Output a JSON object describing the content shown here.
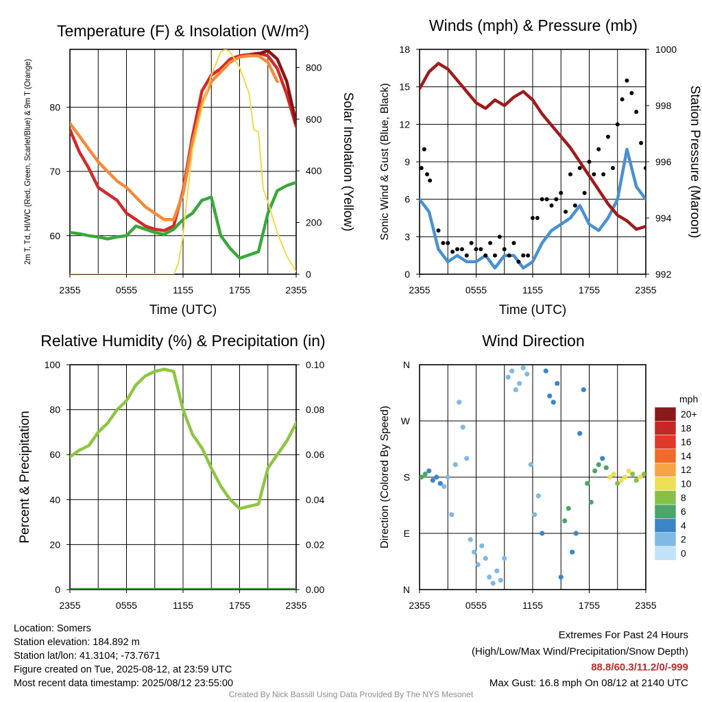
{
  "footer": {
    "location": "Location: Somers",
    "elevation": "Station elevation: 184.892 m",
    "latlon": "Station lat/lon: 41.3104; -73.7671",
    "created": "Figure created on Tue, 2025-08-12, at 23:59 UTC",
    "recent": "Most recent data timestamp: 2025/08/12 23:55:00",
    "extremes_title": "Extremes For Past 24 Hours",
    "extremes_sub": "(High/Low/Max Wind/Precipitation/Snow Depth)",
    "extremes_values": "88.8/60.3/11.2/0/-999",
    "max_gust": "Max Gust: 16.8 mph On 08/12 at 2140 UTC",
    "credit": "Created By Nick Bassill Using Data Provided By The NYS Mesonet"
  },
  "colors": {
    "temp_2m": "#d42a2a",
    "dewpoint": "#3aa83a",
    "heat_index": "#8b1515",
    "temp_9m": "#f38b3a",
    "insolation": "#f5d84a",
    "wind": "#4a90cf",
    "gust": "#000000",
    "pressure": "#9e1b1b",
    "rh": "#8dc63f",
    "precip": "#2e8b2e",
    "extremes": "#c0282d"
  },
  "chart_data": [
    {
      "type": "line",
      "title": "Temperature (F) & Insolation (W/m²)",
      "xlabel": "Time (UTC)",
      "ylabel": "2m T, Td, HI/WC (Red, Green, Scarlet/Blue) & 9m T (Orange)",
      "y2label": "Solar Insolation (Yellow)",
      "xticks": [
        "2355",
        "0555",
        "1155",
        "1755",
        "2355"
      ],
      "xlim": [
        0,
        24
      ],
      "ylim": [
        54,
        89
      ],
      "yticks": [
        60,
        70,
        80
      ],
      "y2lim": [
        0,
        870
      ],
      "y2ticks": [
        0,
        200,
        400,
        600,
        800
      ],
      "grid": true,
      "series": [
        {
          "name": "2m T",
          "axis": "left",
          "color_key": "temp_2m",
          "x": [
            0,
            1,
            2,
            3,
            4,
            5,
            6,
            7,
            8,
            9,
            10,
            11,
            12,
            13,
            14,
            15,
            16,
            17,
            18,
            19,
            20,
            21,
            22,
            23,
            24
          ],
          "y": [
            76.5,
            73.0,
            70.5,
            67.5,
            66.5,
            65.5,
            63.5,
            62.5,
            61.5,
            61.0,
            60.8,
            61.5,
            67.0,
            75.5,
            82.5,
            85.0,
            86.0,
            87.5,
            88.0,
            88.2,
            88.4,
            88.0,
            86.0,
            82.0,
            77.0
          ]
        },
        {
          "name": "HI/WC",
          "axis": "left",
          "color_key": "heat_index",
          "x": [
            19,
            20,
            21,
            22,
            23,
            24
          ],
          "y": [
            88.0,
            88.3,
            88.8,
            87.5,
            84.0,
            77.5
          ]
        },
        {
          "name": "9m T",
          "axis": "left",
          "color_key": "temp_9m",
          "x": [
            0,
            1,
            2,
            3,
            4,
            5,
            6,
            7,
            8,
            9,
            10,
            11,
            12,
            13,
            14,
            15,
            16,
            17,
            18,
            19,
            20,
            21,
            22
          ],
          "y": [
            77.5,
            75.5,
            73.5,
            71.5,
            70.0,
            68.5,
            67.5,
            66.0,
            64.5,
            63.5,
            62.5,
            62.5,
            66.5,
            74.5,
            80.5,
            84.0,
            85.5,
            87.0,
            87.8,
            88.0,
            88.0,
            87.0,
            84.0
          ]
        },
        {
          "name": "Td",
          "axis": "left",
          "color_key": "dewpoint",
          "x": [
            0,
            1,
            2,
            3,
            4,
            5,
            6,
            7,
            8,
            9,
            10,
            11,
            12,
            13,
            14,
            15,
            16,
            17,
            18,
            19,
            20,
            21,
            22,
            23,
            24
          ],
          "y": [
            60.5,
            60.3,
            60.0,
            59.8,
            59.5,
            59.8,
            60.0,
            61.5,
            61.0,
            60.5,
            60.2,
            61.0,
            62.5,
            63.5,
            65.5,
            66.0,
            60.0,
            58.0,
            56.5,
            57.0,
            57.5,
            63.5,
            67.0,
            67.8,
            68.3
          ]
        },
        {
          "name": "Solar Insolation",
          "axis": "right",
          "color_key": "insolation",
          "x": [
            0,
            11,
            11.5,
            12,
            12.5,
            13,
            14,
            15,
            16,
            16.5,
            17,
            18,
            19,
            19.5,
            20,
            20.5,
            21,
            22,
            23,
            24
          ],
          "y": [
            0,
            0,
            40,
            150,
            320,
            480,
            640,
            770,
            860,
            870,
            860,
            800,
            700,
            560,
            550,
            330,
            280,
            160,
            70,
            10
          ]
        }
      ]
    },
    {
      "type": "line",
      "title": "Winds (mph) & Pressure (mb)",
      "xlabel": "Time (UTC)",
      "ylabel": "Sonic Wind & Gust (Blue, Black)",
      "y2label": "Station Pressure (Maroon)",
      "xticks": [
        "2355",
        "0555",
        "1155",
        "1755",
        "2355"
      ],
      "xlim": [
        0,
        24
      ],
      "ylim": [
        0,
        18
      ],
      "yticks": [
        0,
        3,
        6,
        9,
        12,
        15,
        18
      ],
      "y2lim": [
        992,
        1000
      ],
      "y2ticks": [
        992,
        994,
        996,
        998,
        1000
      ],
      "grid": true,
      "series": [
        {
          "name": "Sonic Wind",
          "axis": "left",
          "color_key": "wind",
          "x": [
            0,
            1,
            2,
            3,
            4,
            5,
            6,
            7,
            8,
            9,
            10,
            11,
            12,
            13,
            14,
            15,
            16,
            17,
            18,
            19,
            20,
            21,
            22,
            23,
            24
          ],
          "y": [
            6.0,
            5.0,
            2.0,
            1.0,
            1.5,
            1.0,
            1.0,
            1.5,
            0.5,
            1.5,
            1.5,
            0.5,
            1.0,
            2.5,
            3.5,
            4.0,
            4.5,
            5.5,
            4.0,
            3.5,
            4.5,
            6.0,
            10.0,
            7.0,
            6.0
          ]
        },
        {
          "name": "Gust",
          "axis": "left",
          "type": "scatter",
          "color_key": "gust",
          "x": [
            0.2,
            0.5,
            0.8,
            1.1,
            2.0,
            2.5,
            3.0,
            3.5,
            4.0,
            4.5,
            5.0,
            5.5,
            6.0,
            6.5,
            7.0,
            7.5,
            8.0,
            8.5,
            9.0,
            9.5,
            10.0,
            10.5,
            11.0,
            11.5,
            12.0,
            12.5,
            13.0,
            13.5,
            14.0,
            14.5,
            15.0,
            15.5,
            16.0,
            16.5,
            17.0,
            17.5,
            18.0,
            18.5,
            19.0,
            19.5,
            20.0,
            20.5,
            21.0,
            21.5,
            22.0,
            22.5,
            23.0,
            23.5,
            24.0
          ],
          "y": [
            8.5,
            10.0,
            8.0,
            7.5,
            3.5,
            2.5,
            2.5,
            1.8,
            2.0,
            2.0,
            1.5,
            2.5,
            2.0,
            2.0,
            1.5,
            2.5,
            1.5,
            3.0,
            2.0,
            1.5,
            2.5,
            1.0,
            1.5,
            1.5,
            4.5,
            4.5,
            6.0,
            6.0,
            5.5,
            6.0,
            6.5,
            5.0,
            8.0,
            5.5,
            8.5,
            6.5,
            9.0,
            8.0,
            10.0,
            8.0,
            11.0,
            8.5,
            12.0,
            14.0,
            15.5,
            14.5,
            13.0,
            10.5,
            8.5
          ]
        },
        {
          "name": "Station Pressure",
          "axis": "right",
          "color_key": "pressure",
          "x": [
            0,
            1,
            2,
            3,
            4,
            5,
            6,
            7,
            8,
            9,
            10,
            11,
            12,
            13,
            14,
            15,
            16,
            17,
            18,
            19,
            20,
            21,
            22,
            23,
            24
          ],
          "y": [
            998.6,
            999.2,
            999.5,
            999.3,
            998.9,
            998.5,
            998.1,
            997.9,
            998.2,
            998.0,
            998.3,
            998.5,
            998.2,
            997.7,
            997.3,
            996.9,
            996.5,
            996.0,
            995.5,
            995.0,
            994.5,
            994.1,
            993.9,
            993.6,
            993.7
          ]
        }
      ]
    },
    {
      "type": "line",
      "title": "Relative Humidity (%) & Precipitation (in)",
      "xlabel": "",
      "ylabel": "Percent & Precipitation",
      "xticks": [
        "2355",
        "0555",
        "1155",
        "1755",
        "2355"
      ],
      "xlim": [
        0,
        24
      ],
      "ylim": [
        0,
        100
      ],
      "yticks": [
        0,
        20,
        40,
        60,
        80,
        100
      ],
      "y2lim": [
        0,
        0.1
      ],
      "y2ticks": [
        "0.00",
        "0.02",
        "0.04",
        "0.06",
        "0.08",
        "0.10"
      ],
      "grid": true,
      "series": [
        {
          "name": "Relative Humidity",
          "axis": "left",
          "color_key": "rh",
          "x": [
            0,
            1,
            2,
            3,
            4,
            5,
            6,
            7,
            8,
            9,
            10,
            11,
            12,
            13,
            14,
            15,
            16,
            17,
            18,
            19,
            20,
            21,
            22,
            23,
            24
          ],
          "y": [
            59,
            62,
            64,
            70,
            74,
            80,
            84,
            91,
            95,
            97,
            98,
            97,
            80,
            69,
            63,
            54,
            46,
            40,
            36,
            37,
            38,
            54,
            60,
            66,
            74
          ]
        },
        {
          "name": "Precipitation",
          "axis": "right",
          "color_key": "precip",
          "x": [
            0,
            24
          ],
          "y": [
            0,
            0
          ]
        }
      ]
    },
    {
      "type": "scatter",
      "title": "Wind Direction",
      "xlabel": "",
      "ylabel": "Direction (Colored By Speed)",
      "xticks": [
        "2355",
        "0555",
        "1155",
        "1755",
        "2355"
      ],
      "xlim": [
        0,
        24
      ],
      "ylim": [
        0,
        360
      ],
      "yticks": [
        "N",
        "E",
        "S",
        "W",
        "N"
      ],
      "grid": true,
      "legend": {
        "title": "mph",
        "placement": "right",
        "labels": [
          "20+",
          "18",
          "16",
          "14",
          "12",
          "10",
          "8",
          "6",
          "4",
          "2",
          "0"
        ],
        "colors": [
          "#8a1a1a",
          "#c42726",
          "#e0392b",
          "#f06a2b",
          "#f7a542",
          "#ece054",
          "#86c049",
          "#4ca56a",
          "#3a86c6",
          "#80b9e3",
          "#c2e3f5"
        ]
      },
      "series": [
        {
          "name": "",
          "x": [
            0.2,
            0.6,
            1.0,
            1.4,
            1.8,
            2.2,
            2.6,
            3.0,
            3.4,
            3.8,
            4.2,
            4.6,
            5.0,
            5.4,
            5.8,
            6.2,
            6.6,
            7.0,
            7.4,
            7.8,
            8.2,
            8.6,
            9.0,
            9.4,
            9.8,
            10.2,
            10.6,
            11.0,
            11.4,
            11.8,
            12.2,
            12.6,
            13.0,
            13.4,
            13.8,
            14.2,
            14.6,
            15.0,
            15.4,
            15.8,
            16.2,
            16.6,
            17.0,
            17.4,
            17.8,
            18.2,
            18.6,
            19.0,
            19.4,
            19.8,
            20.2,
            20.6,
            21.0,
            21.4,
            21.8,
            22.2,
            22.6,
            23.0,
            23.4,
            23.8
          ],
          "y": [
            180,
            185,
            190,
            175,
            180,
            170,
            165,
            180,
            120,
            200,
            300,
            260,
            210,
            80,
            60,
            40,
            70,
            50,
            20,
            10,
            30,
            15,
            50,
            340,
            350,
            320,
            330,
            355,
            345,
            200,
            120,
            150,
            90,
            350,
            310,
            300,
            330,
            20,
            110,
            130,
            60,
            90,
            250,
            320,
            170,
            140,
            190,
            200,
            210,
            195,
            180,
            185,
            170,
            175,
            180,
            190,
            185,
            175,
            180,
            185
          ],
          "speed": [
            6,
            5,
            4,
            3,
            4,
            3,
            2,
            2,
            1,
            2,
            1,
            1,
            1,
            1,
            2,
            2,
            1,
            1,
            1,
            1,
            1,
            1,
            1,
            1,
            1,
            1,
            1,
            1,
            1,
            2,
            1,
            2,
            4,
            3,
            3,
            4,
            3,
            4,
            5,
            6,
            3,
            4,
            3,
            4,
            5,
            6,
            5,
            5,
            4,
            6,
            9,
            9,
            8,
            9,
            10,
            9,
            8,
            8,
            9,
            7
          ]
        }
      ]
    }
  ]
}
